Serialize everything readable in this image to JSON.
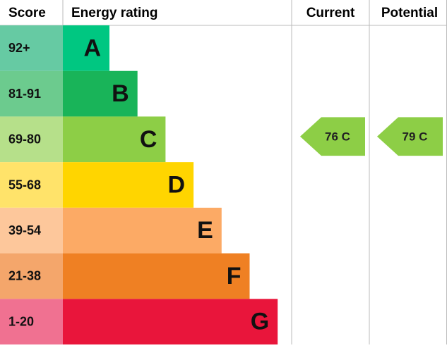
{
  "header": {
    "score": "Score",
    "rating": "Energy rating",
    "current": "Current",
    "potential": "Potential"
  },
  "rows": [
    {
      "score": "92+",
      "letter": "A",
      "color": "#00c781",
      "score_color": "#66caa3"
    },
    {
      "score": "81-91",
      "letter": "B",
      "color": "#19b459",
      "score_color": "#6ccb8e"
    },
    {
      "score": "69-80",
      "letter": "C",
      "color": "#8dce46",
      "score_color": "#b6e08a"
    },
    {
      "score": "55-68",
      "letter": "D",
      "color": "#ffd500",
      "score_color": "#ffe36a"
    },
    {
      "score": "39-54",
      "letter": "E",
      "color": "#fcaa65",
      "score_color": "#fdc79b"
    },
    {
      "score": "21-38",
      "letter": "F",
      "color": "#ef8023",
      "score_color": "#f4a66b"
    },
    {
      "score": "1-20",
      "letter": "G",
      "color": "#e9153b",
      "score_color": "#f07191"
    }
  ],
  "current": {
    "label": "76 C"
  },
  "potential": {
    "label": "79 C"
  }
}
